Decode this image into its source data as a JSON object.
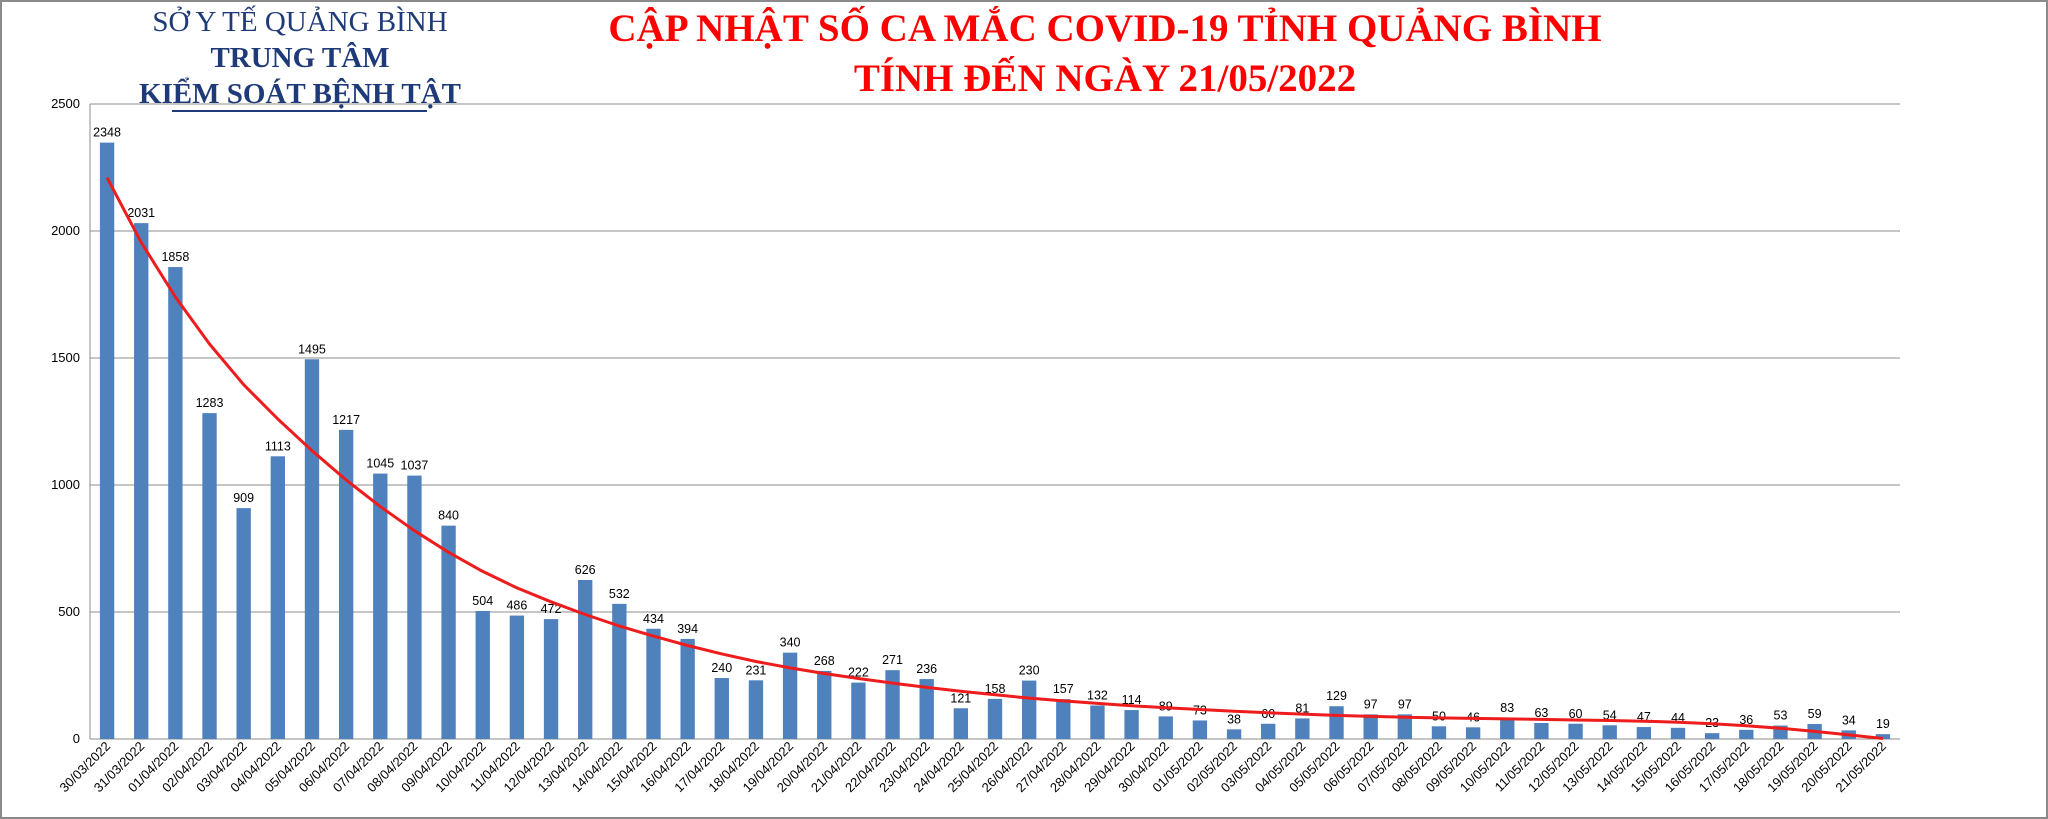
{
  "header": {
    "org_line1": "SỞ Y TẾ QUẢNG BÌNH",
    "org_line2": "TRUNG TÂM",
    "org_line3": "KIỂM SOÁT BỆNH TẬT",
    "title_line1": "CẬP NHẬT SỐ CA MẮC COVID-19 TỈNH QUẢNG BÌNH",
    "title_line2": "TÍNH ĐẾN NGÀY 21/05/2022"
  },
  "colors": {
    "bar": "#4f81bd",
    "trend": "#ee1c1c",
    "grid": "#8c8c8c",
    "title": "#ff0000",
    "org": "#1f3a78"
  },
  "chart_data": {
    "type": "bar",
    "title": "CẬP NHẬT SỐ CA MẮC COVID-19 TỈNH QUẢNG BÌNH TÍNH ĐẾN NGÀY 21/05/2022",
    "xlabel": "",
    "ylabel": "",
    "ylim": [
      0,
      2500
    ],
    "yticks": [
      0,
      500,
      1000,
      1500,
      2000,
      2500
    ],
    "grid": true,
    "trendline": "polynomial",
    "categories": [
      "30/03/2022",
      "31/03/2022",
      "01/04/2022",
      "02/04/2022",
      "03/04/2022",
      "04/04/2022",
      "05/04/2022",
      "06/04/2022",
      "07/04/2022",
      "08/04/2022",
      "09/04/2022",
      "10/04/2022",
      "11/04/2022",
      "12/04/2022",
      "13/04/2022",
      "14/04/2022",
      "15/04/2022",
      "16/04/2022",
      "17/04/2022",
      "18/04/2022",
      "19/04/2022",
      "20/04/2022",
      "21/04/2022",
      "22/04/2022",
      "23/04/2022",
      "24/04/2022",
      "25/04/2022",
      "26/04/2022",
      "27/04/2022",
      "28/04/2022",
      "29/04/2022",
      "30/04/2022",
      "01/05/2022",
      "02/05/2022",
      "03/05/2022",
      "04/05/2022",
      "05/05/2022",
      "06/05/2022",
      "07/05/2022",
      "08/05/2022",
      "09/05/2022",
      "10/05/2022",
      "11/05/2022",
      "12/05/2022",
      "13/05/2022",
      "14/05/2022",
      "15/05/2022",
      "16/05/2022",
      "17/05/2022",
      "18/05/2022",
      "19/05/2022",
      "20/05/2022",
      "21/05/2022"
    ],
    "values": [
      2348,
      2031,
      1858,
      1283,
      909,
      1113,
      1495,
      1217,
      1045,
      1037,
      840,
      504,
      486,
      472,
      626,
      532,
      434,
      394,
      240,
      231,
      340,
      268,
      222,
      271,
      236,
      121,
      158,
      230,
      157,
      132,
      114,
      89,
      73,
      38,
      60,
      81,
      129,
      97,
      97,
      50,
      46,
      83,
      63,
      60,
      54,
      47,
      44,
      23,
      36,
      53,
      59,
      34,
      19
    ],
    "trend_values": [
      2210,
      1955,
      1740,
      1555,
      1395,
      1260,
      1135,
      1020,
      915,
      820,
      735,
      660,
      595,
      540,
      490,
      445,
      405,
      368,
      335,
      305,
      280,
      258,
      238,
      220,
      203,
      188,
      174,
      161,
      150,
      140,
      131,
      123,
      116,
      109,
      103,
      98,
      93,
      89,
      86,
      83,
      81,
      79,
      77,
      75,
      73,
      70,
      66,
      60,
      52,
      42,
      30,
      16,
      2
    ]
  }
}
